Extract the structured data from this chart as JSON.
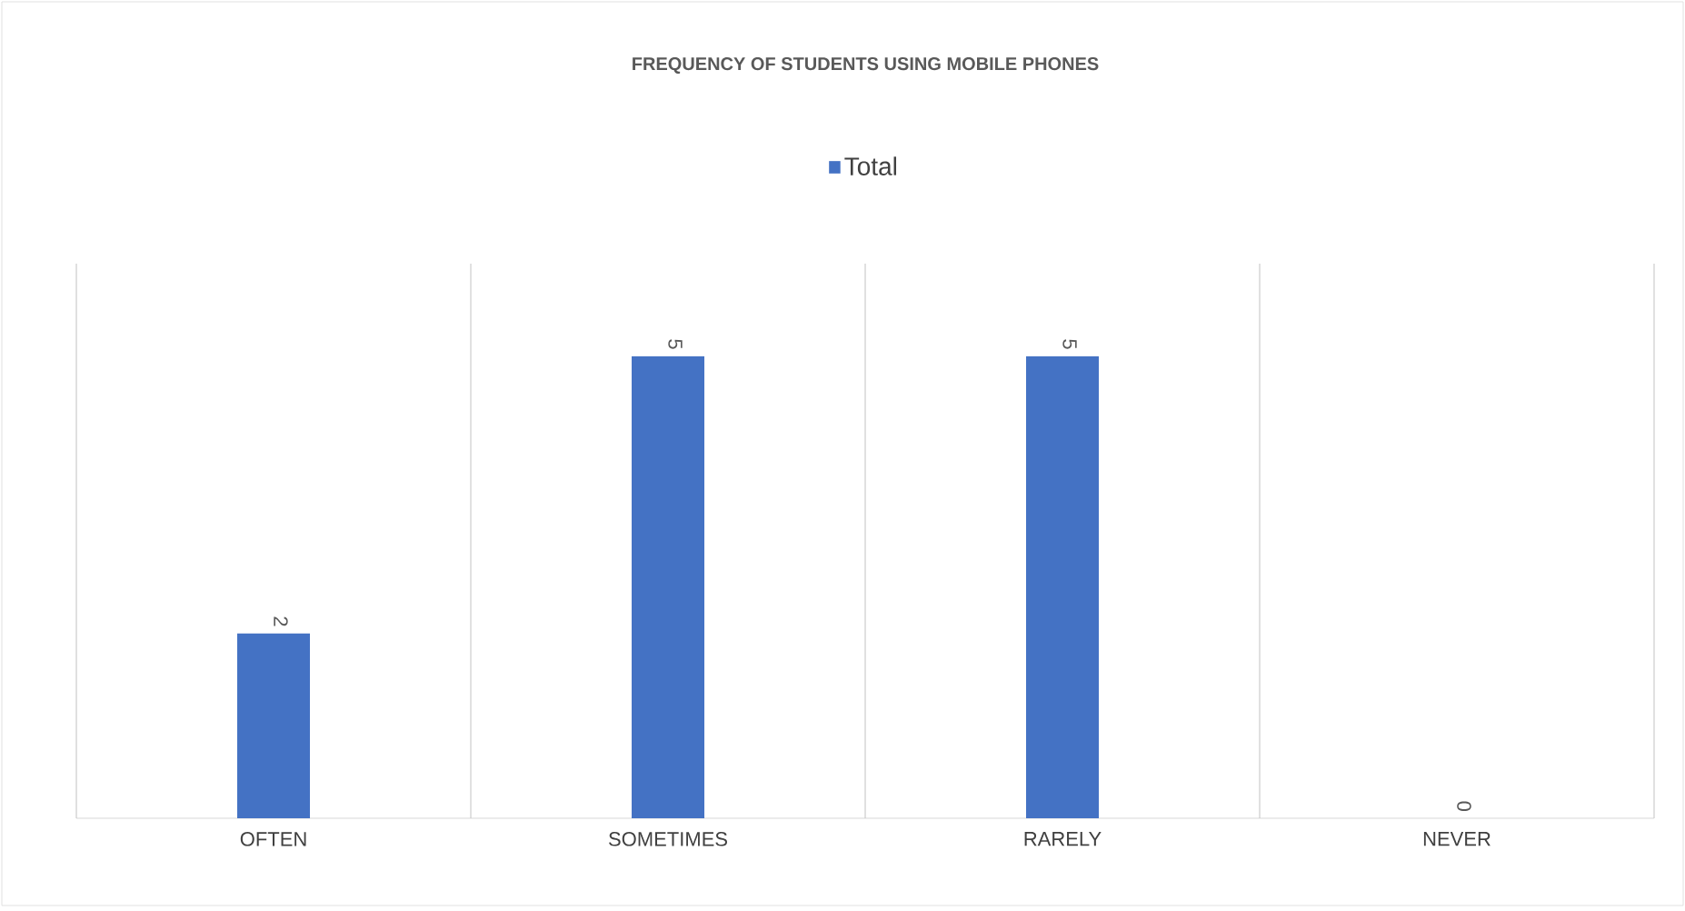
{
  "chart_data": {
    "type": "bar",
    "title": "FREQUENCY OF STUDENTS USING MOBILE PHONES",
    "categories": [
      "OFTEN",
      "SOMETIMES",
      "RARELY",
      "NEVER"
    ],
    "series": [
      {
        "name": "Total",
        "color": "#4472c4",
        "values": [
          2,
          5,
          5,
          0
        ]
      }
    ],
    "data_labels": true,
    "legend": "top",
    "grid": "x"
  }
}
